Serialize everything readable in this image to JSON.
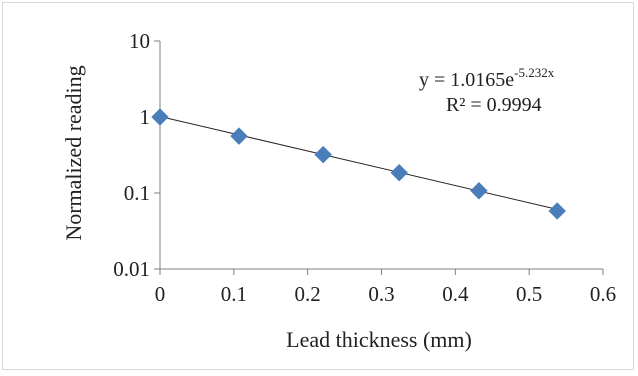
{
  "chart_data": {
    "type": "scatter",
    "title": "",
    "xlabel": "Lead thickness (mm)",
    "ylabel": "Normalized reading",
    "xlim": [
      0,
      0.6
    ],
    "ylim": [
      0.01,
      10
    ],
    "yscale": "log",
    "grid": false,
    "x_ticks": [
      "0",
      "0.1",
      "0.2",
      "0.3",
      "0.4",
      "0.5",
      "0.6"
    ],
    "y_ticks": [
      "0.01",
      "0.1",
      "1",
      "10"
    ],
    "marker_color": "#4a7ebb",
    "marker": "diamond",
    "series": [
      {
        "x": [
          0,
          0.107,
          0.221,
          0.324,
          0.432,
          0.538
        ],
        "y": [
          1.0,
          0.56,
          0.32,
          0.185,
          0.107,
          0.058
        ]
      }
    ],
    "trendline": {
      "type": "exponential",
      "a": 1.0165,
      "b": -5.232,
      "color": "#262626",
      "equation_prefix": "y = 1.0165e",
      "equation_exponent": "-5.232x",
      "r_squared_label": "R² = 0.9994"
    }
  }
}
